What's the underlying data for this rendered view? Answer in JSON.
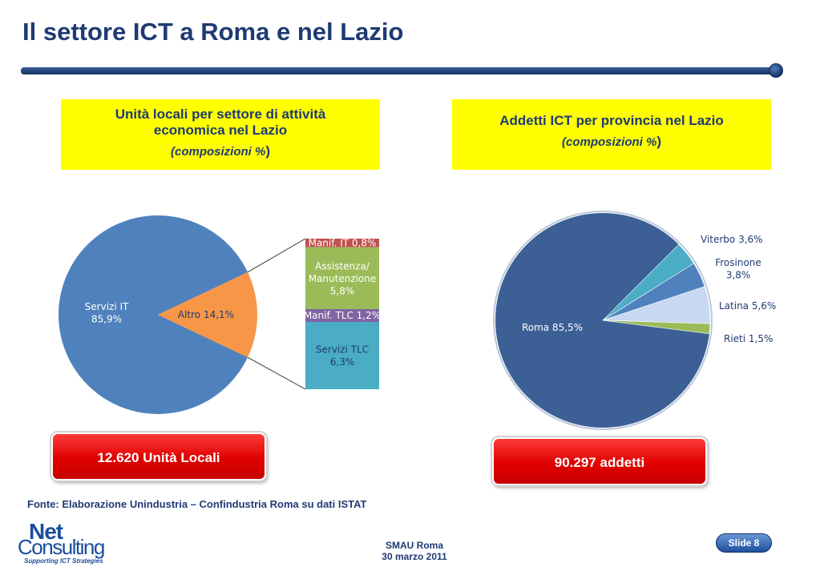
{
  "slide": {
    "title": "Il settore ICT a Roma e nel Lazio",
    "left_box": {
      "line1": "Unità locali per settore di attività",
      "line2": "economica nel Lazio",
      "line3": "(composizioni %",
      "line3_close": ")"
    },
    "right_box": {
      "line1": "Addetti ICT per provincia nel Lazio",
      "line2": "(composizioni %",
      "line2_close": ")"
    },
    "left_total": "12.620 Unità Locali",
    "right_total": "90.297 addetti",
    "source": "Fonte: Elaborazione Unindustria – Confindustria Roma su dati ISTAT",
    "logo": {
      "net": "Net",
      "consulting": "Consulting",
      "tagline": "Supporting ICT Strategies"
    },
    "event": "SMAU Roma",
    "date": "30 marzo 2011",
    "slide_label": "Slide 8"
  },
  "colors": {
    "title": "#1f3a73",
    "yellow": "#ffff00",
    "red": "#e00000",
    "servizi_it": "#4f81bd",
    "altro": "#f79646"
  },
  "chart_data": [
    {
      "type": "pie",
      "series": [
        {
          "label": "Servizi IT",
          "value": 85.9,
          "display": "Servizi IT\n85,9%",
          "color": "#4f81bd"
        },
        {
          "label": "Altro",
          "value": 14.1,
          "display": "Altro 14,1%",
          "color": "#f79646"
        }
      ],
      "breakdown": {
        "type": "stacked-bar",
        "of": "Altro",
        "series": [
          {
            "label": "Manif. IT",
            "value": 0.8,
            "display": "Manif. IT 0,8%",
            "color": "#c0504d"
          },
          {
            "label": "Assistenza/ Manutenzione",
            "value": 5.8,
            "display": "Assistenza/\nManutenzione\n5,8%",
            "color": "#9bbb59"
          },
          {
            "label": "Manif. TLC",
            "value": 1.2,
            "display": "Manif. TLC 1,2%",
            "color": "#8064a2"
          },
          {
            "label": "Servizi TLC",
            "value": 6.3,
            "display": "Servizi TLC\n6,3%",
            "color": "#4bacc6"
          }
        ]
      }
    },
    {
      "type": "pie",
      "series": [
        {
          "label": "Roma",
          "value": 85.5,
          "display": "Roma 85,5%",
          "color": "#3c5f96"
        },
        {
          "label": "Viterbo",
          "value": 3.6,
          "display": "Viterbo 3,6%",
          "color": "#4bacc6"
        },
        {
          "label": "Frosinone",
          "value": 3.8,
          "display": "Frosinone\n3,8%",
          "color": "#4f81bd"
        },
        {
          "label": "Latina",
          "value": 5.6,
          "display": "Latina 5,6%",
          "color": "#c6d9f0"
        },
        {
          "label": "Rieti",
          "value": 1.5,
          "display": "Rieti 1,5%",
          "color": "#9bbb59"
        }
      ]
    }
  ]
}
